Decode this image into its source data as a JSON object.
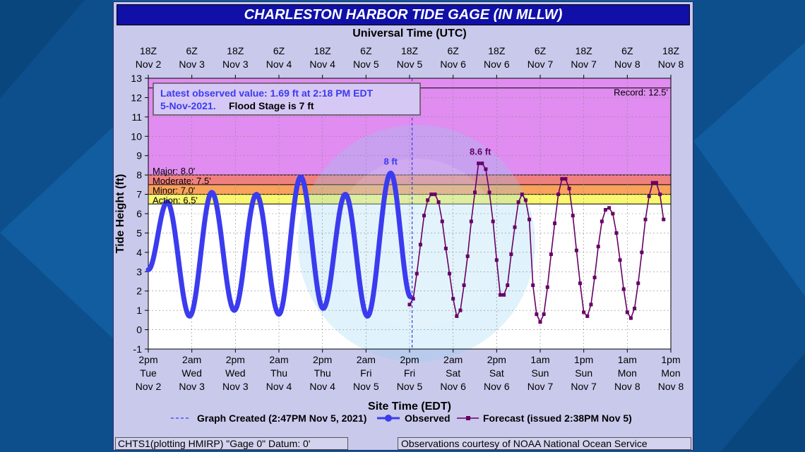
{
  "title": "CHARLESTON HARBOR TIDE GAGE (IN MLLW)",
  "footer_left": "CHTS1(plotting HMIRP) \"Gage 0\" Datum: 0'",
  "footer_right": "Observations courtesy of NOAA National Ocean Service",
  "colors": {
    "background": "#0f5a9a",
    "panel": "#c9c9ec",
    "title_bar": "#1010a8",
    "observed": "#3b3bef",
    "forecast": "#660066",
    "record_band": "#e08cf0",
    "major_band": "#f08080",
    "moderate_band": "#f8a25c",
    "minor_band": "#f8e070",
    "action_band": "#f8f870"
  },
  "chart_data": {
    "type": "line",
    "top_axis_title": "Universal Time (UTC)",
    "xlabel": "Site Time (EDT)",
    "ylabel": "Tide Height (ft)",
    "ylim": [
      -1,
      13
    ],
    "yticks": [
      -1,
      0,
      1,
      2,
      3,
      4,
      5,
      6,
      7,
      8,
      9,
      10,
      11,
      12,
      13
    ],
    "xlim_hours": [
      0,
      144
    ],
    "top_ticks": [
      {
        "h": 0,
        "l1": "18Z",
        "l2": "Nov 2"
      },
      {
        "h": 12,
        "l1": "6Z",
        "l2": "Nov 3"
      },
      {
        "h": 24,
        "l1": "18Z",
        "l2": "Nov 3"
      },
      {
        "h": 36,
        "l1": "6Z",
        "l2": "Nov 4"
      },
      {
        "h": 48,
        "l1": "18Z",
        "l2": "Nov 4"
      },
      {
        "h": 60,
        "l1": "6Z",
        "l2": "Nov 5"
      },
      {
        "h": 72,
        "l1": "18Z",
        "l2": "Nov 5"
      },
      {
        "h": 84,
        "l1": "6Z",
        "l2": "Nov 6"
      },
      {
        "h": 96,
        "l1": "18Z",
        "l2": "Nov 6"
      },
      {
        "h": 108,
        "l1": "6Z",
        "l2": "Nov 7"
      },
      {
        "h": 120,
        "l1": "18Z",
        "l2": "Nov 7"
      },
      {
        "h": 132,
        "l1": "6Z",
        "l2": "Nov 8"
      },
      {
        "h": 144,
        "l1": "18Z",
        "l2": "Nov 8"
      }
    ],
    "bottom_ticks": [
      {
        "h": 0,
        "l1": "2pm",
        "l2": "Tue",
        "l3": "Nov 2"
      },
      {
        "h": 12,
        "l1": "2am",
        "l2": "Wed",
        "l3": "Nov 3"
      },
      {
        "h": 24,
        "l1": "2pm",
        "l2": "Wed",
        "l3": "Nov 3"
      },
      {
        "h": 36,
        "l1": "2am",
        "l2": "Thu",
        "l3": "Nov 4"
      },
      {
        "h": 48,
        "l1": "2pm",
        "l2": "Thu",
        "l3": "Nov 4"
      },
      {
        "h": 60,
        "l1": "2am",
        "l2": "Fri",
        "l3": "Nov 5"
      },
      {
        "h": 72,
        "l1": "2pm",
        "l2": "Fri",
        "l3": "Nov 5"
      },
      {
        "h": 84,
        "l1": "2am",
        "l2": "Sat",
        "l3": "Nov 6"
      },
      {
        "h": 96,
        "l1": "2pm",
        "l2": "Sat",
        "l3": "Nov 6"
      },
      {
        "h": 108,
        "l1": "1am",
        "l2": "Sun",
        "l3": "Nov 7"
      },
      {
        "h": 120,
        "l1": "1pm",
        "l2": "Sun",
        "l3": "Nov 7"
      },
      {
        "h": 132,
        "l1": "1am",
        "l2": "Mon",
        "l3": "Nov 8"
      },
      {
        "h": 144,
        "l1": "1pm",
        "l2": "Mon",
        "l3": "Nov 8"
      }
    ],
    "stages": [
      {
        "name": "Record",
        "label": "Record: 12.5'",
        "value": 12.5
      },
      {
        "name": "Major",
        "label": "Major: 8.0'",
        "value": 8.0
      },
      {
        "name": "Moderate",
        "label": "Moderate: 7.5'",
        "value": 7.5
      },
      {
        "name": "Minor",
        "label": "Minor: 7.0'",
        "value": 7.0
      },
      {
        "name": "Action",
        "label": "Action: 6.5'",
        "value": 6.5
      }
    ],
    "info_box": {
      "line1": "Latest observed value: 1.69 ft at 2:18 PM EDT",
      "line2a": "5-Nov-2021.",
      "line2b": "Flood Stage is 7 ft"
    },
    "graph_created_hour": 72.7,
    "peak_labels": [
      {
        "h": 66.8,
        "value": 8.1,
        "text": "8 ft",
        "series": "Observed"
      },
      {
        "h": 91.5,
        "value": 8.6,
        "text": "8.6 ft",
        "series": "Forecast"
      }
    ],
    "legend": {
      "created": "Graph Created (2:47PM Nov 5, 2021)",
      "observed": "Observed",
      "forecast": "Forecast (issued 2:38PM Nov 5)"
    },
    "series": [
      {
        "name": "Observed",
        "points": [
          [
            0,
            3.1
          ],
          [
            5.2,
            6.6
          ],
          [
            11.4,
            0.7
          ],
          [
            17.5,
            7.1
          ],
          [
            23.7,
            1.0
          ],
          [
            29.8,
            7.0
          ],
          [
            36.0,
            0.8
          ],
          [
            42.0,
            7.9
          ],
          [
            48.2,
            1.1
          ],
          [
            54.3,
            7.0
          ],
          [
            60.4,
            0.7
          ],
          [
            66.8,
            8.1
          ],
          [
            72.3,
            1.69
          ]
        ]
      },
      {
        "name": "Forecast",
        "points": [
          [
            72,
            1.3
          ],
          [
            73,
            1.6
          ],
          [
            74,
            2.9
          ],
          [
            75,
            4.4
          ],
          [
            76,
            5.9
          ],
          [
            77,
            6.7
          ],
          [
            78,
            7.0
          ],
          [
            79,
            7.0
          ],
          [
            80,
            6.6
          ],
          [
            81,
            5.6
          ],
          [
            82,
            4.2
          ],
          [
            83,
            2.9
          ],
          [
            84,
            1.6
          ],
          [
            85,
            0.7
          ],
          [
            86,
            1.0
          ],
          [
            87,
            2.3
          ],
          [
            88,
            3.8
          ],
          [
            89,
            5.6
          ],
          [
            90,
            7.1
          ],
          [
            91,
            8.6
          ],
          [
            92,
            8.6
          ],
          [
            93,
            8.3
          ],
          [
            94,
            7.1
          ],
          [
            95,
            5.6
          ],
          [
            96,
            3.6
          ],
          [
            97,
            1.8
          ],
          [
            98,
            1.8
          ],
          [
            99,
            2.3
          ],
          [
            100,
            3.9
          ],
          [
            101,
            5.3
          ],
          [
            102,
            6.6
          ],
          [
            103,
            7.0
          ],
          [
            104,
            6.7
          ],
          [
            105,
            5.7
          ],
          [
            106,
            2.3
          ],
          [
            107,
            0.8
          ],
          [
            108,
            0.4
          ],
          [
            109,
            0.8
          ],
          [
            110,
            2.2
          ],
          [
            111,
            3.9
          ],
          [
            112,
            5.5
          ],
          [
            113,
            7.0
          ],
          [
            114,
            7.8
          ],
          [
            115,
            7.8
          ],
          [
            116,
            7.3
          ],
          [
            117,
            5.9
          ],
          [
            118,
            4.1
          ],
          [
            119,
            2.4
          ],
          [
            120,
            0.9
          ],
          [
            121,
            0.7
          ],
          [
            122,
            1.3
          ],
          [
            123,
            2.7
          ],
          [
            124,
            4.3
          ],
          [
            125,
            5.6
          ],
          [
            126,
            6.2
          ],
          [
            127,
            6.3
          ],
          [
            128,
            6.0
          ],
          [
            129,
            5.0
          ],
          [
            130,
            3.6
          ],
          [
            131,
            2.1
          ],
          [
            132,
            0.9
          ],
          [
            133,
            0.6
          ],
          [
            134,
            1.1
          ],
          [
            135,
            2.4
          ],
          [
            136,
            4.0
          ],
          [
            137,
            5.7
          ],
          [
            138,
            6.9
          ],
          [
            139,
            7.6
          ],
          [
            140,
            7.6
          ],
          [
            141,
            7.0
          ],
          [
            142,
            5.7
          ]
        ]
      }
    ]
  }
}
